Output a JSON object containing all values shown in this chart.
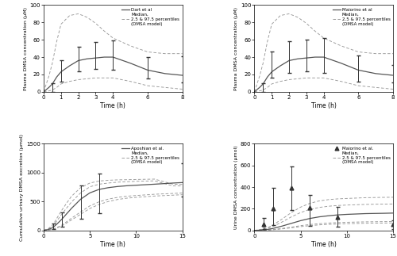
{
  "panel_tl": {
    "legend_label": "Dart et al",
    "legend_lines": [
      "Median,",
      "2.5 & 97.5 percentiles",
      "(DMSA model)"
    ],
    "xlabel": "Time (h)",
    "ylabel": "Plasma DMSA concentration (μM)",
    "xlim": [
      0,
      8
    ],
    "ylim": [
      0,
      100
    ],
    "xticks": [
      0,
      1,
      2,
      3,
      4,
      6,
      8
    ],
    "yticks": [
      0,
      20,
      40,
      60,
      80,
      100
    ],
    "median_x": [
      0,
      0.3,
      0.5,
      0.75,
      1,
      1.5,
      2,
      2.5,
      3,
      3.5,
      4,
      5,
      6,
      7,
      8
    ],
    "median_y": [
      0,
      5,
      9,
      17,
      23,
      30,
      36,
      38,
      39,
      40,
      40,
      33,
      25,
      21,
      19
    ],
    "p97_x": [
      0,
      0.3,
      0.5,
      0.75,
      1,
      1.5,
      2,
      2.5,
      3,
      3.5,
      4,
      5,
      6,
      7,
      8
    ],
    "p97_y": [
      0,
      18,
      33,
      58,
      78,
      88,
      90,
      86,
      79,
      70,
      62,
      53,
      46,
      44,
      44
    ],
    "p25_x": [
      0,
      0.3,
      0.5,
      0.75,
      1,
      1.5,
      2,
      2.5,
      3,
      3.5,
      4,
      5,
      6,
      7,
      8
    ],
    "p25_y": [
      0,
      1,
      2,
      5,
      9,
      12,
      14,
      15,
      16,
      16,
      16,
      12,
      7,
      5,
      3
    ],
    "obs_x": [
      0.5,
      1,
      2,
      3,
      4,
      6,
      8
    ],
    "obs_y": [
      5,
      24,
      37,
      39,
      41,
      25,
      19
    ],
    "obs_err_lo": [
      5,
      12,
      13,
      13,
      16,
      10,
      8
    ],
    "obs_err_hi": [
      5,
      12,
      15,
      18,
      18,
      15,
      22
    ],
    "marker": "none"
  },
  "panel_tr": {
    "legend_label": "Maiorino et al",
    "legend_lines": [
      "Median,",
      "2.5 & 97.5 percentiles",
      "(DMSA model)"
    ],
    "xlabel": "Time (h)",
    "ylabel": "Plasma DMSA concentration (μM)",
    "xlim": [
      0,
      8
    ],
    "ylim": [
      0,
      100
    ],
    "xticks": [
      0,
      1,
      2,
      3,
      4,
      6,
      8
    ],
    "yticks": [
      0,
      20,
      40,
      60,
      80,
      100
    ],
    "median_x": [
      0,
      0.3,
      0.5,
      0.75,
      1,
      1.5,
      2,
      2.5,
      3,
      3.5,
      4,
      5,
      6,
      7,
      8
    ],
    "median_y": [
      0,
      5,
      9,
      17,
      23,
      30,
      36,
      38,
      39,
      40,
      40,
      33,
      25,
      21,
      19
    ],
    "p97_x": [
      0,
      0.3,
      0.5,
      0.75,
      1,
      1.5,
      2,
      2.5,
      3,
      3.5,
      4,
      5,
      6,
      7,
      8
    ],
    "p97_y": [
      0,
      18,
      33,
      58,
      78,
      88,
      90,
      86,
      79,
      70,
      62,
      53,
      46,
      44,
      44
    ],
    "p25_x": [
      0,
      0.3,
      0.5,
      0.75,
      1,
      1.5,
      2,
      2.5,
      3,
      3.5,
      4,
      5,
      6,
      7,
      8
    ],
    "p25_y": [
      0,
      1,
      2,
      5,
      9,
      12,
      14,
      15,
      16,
      16,
      16,
      12,
      7,
      5,
      3
    ],
    "obs_x": [
      0.5,
      1,
      2,
      3,
      4,
      6,
      8
    ],
    "obs_y": [
      5,
      30,
      38,
      40,
      42,
      26,
      21
    ],
    "obs_err_lo": [
      5,
      14,
      16,
      16,
      20,
      14,
      10
    ],
    "obs_err_hi": [
      5,
      16,
      20,
      20,
      20,
      16,
      10
    ],
    "marker": "none"
  },
  "panel_bl": {
    "legend_label": "Aposhian et al.",
    "legend_lines": [
      "Median,",
      "2.5 & 97.5 percentiles",
      "(DMSA model)"
    ],
    "xlabel": "Time (h)",
    "ylabel": "Cumulative urinary DMSA excretion (μmol)",
    "xlim": [
      0,
      15
    ],
    "ylim": [
      0,
      1500
    ],
    "xticks": [
      0,
      5,
      10,
      15
    ],
    "yticks": [
      0,
      500,
      1000,
      1500
    ],
    "median_x": [
      0,
      0.5,
      1,
      1.5,
      2,
      3,
      4,
      5,
      6,
      7,
      8,
      9,
      10,
      12,
      14,
      15
    ],
    "median_y": [
      0,
      15,
      50,
      120,
      200,
      380,
      540,
      650,
      710,
      740,
      760,
      773,
      782,
      800,
      820,
      828
    ],
    "p97_x": [
      0,
      0.5,
      1,
      1.5,
      2,
      3,
      4,
      5,
      6,
      7,
      8,
      9,
      10,
      12,
      14,
      15
    ],
    "p97_y": [
      0,
      30,
      95,
      230,
      360,
      590,
      740,
      820,
      855,
      868,
      875,
      878,
      882,
      888,
      800,
      795
    ],
    "p25_x": [
      0,
      0.5,
      1,
      1.5,
      2,
      3,
      4,
      5,
      6,
      7,
      8,
      9,
      10,
      12,
      14,
      15
    ],
    "p25_y": [
      0,
      6,
      18,
      45,
      80,
      180,
      280,
      380,
      450,
      500,
      535,
      558,
      572,
      595,
      610,
      618
    ],
    "p97b_x": [
      0,
      0.5,
      1,
      1.5,
      2,
      3,
      4,
      5,
      6,
      7,
      8,
      9,
      10,
      12,
      14,
      15
    ],
    "p97b_y": [
      0,
      25,
      75,
      180,
      290,
      490,
      650,
      755,
      800,
      820,
      835,
      843,
      850,
      858,
      770,
      770
    ],
    "p25b_x": [
      0,
      0.5,
      1,
      1.5,
      2,
      3,
      4,
      5,
      6,
      7,
      8,
      9,
      10,
      12,
      14,
      15
    ],
    "p25b_y": [
      0,
      8,
      22,
      55,
      95,
      210,
      320,
      425,
      495,
      542,
      572,
      592,
      604,
      626,
      640,
      647
    ],
    "obs_x": [
      1,
      2,
      4,
      6,
      15
    ],
    "obs_y": [
      60,
      215,
      455,
      690,
      840
    ],
    "obs_err_lo": [
      40,
      150,
      250,
      390,
      260
    ],
    "obs_err_hi": [
      55,
      100,
      320,
      300,
      320
    ],
    "marker": "none"
  },
  "panel_br": {
    "legend_label": "Maiorino et al.",
    "legend_lines": [
      "Median,",
      "2.5 & 97.5 percentiles",
      "(DMSA model)"
    ],
    "xlabel": "Time (h)",
    "ylabel": "Urine DMSA concentration (μmol)",
    "xlim": [
      0,
      15
    ],
    "ylim": [
      0,
      800
    ],
    "xticks": [
      0,
      5,
      10,
      15
    ],
    "yticks": [
      0,
      200,
      400,
      600,
      800
    ],
    "median_x": [
      0,
      0.5,
      1,
      1.5,
      2,
      3,
      4,
      5,
      6,
      7,
      8,
      9,
      10,
      12,
      14,
      15
    ],
    "median_y": [
      0,
      2,
      5,
      10,
      18,
      40,
      65,
      90,
      110,
      125,
      135,
      143,
      148,
      155,
      158,
      160
    ],
    "p97_x": [
      0,
      0.5,
      1,
      1.5,
      2,
      3,
      4,
      5,
      6,
      7,
      8,
      9,
      10,
      12,
      14,
      15
    ],
    "p97_y": [
      0,
      5,
      14,
      28,
      50,
      105,
      165,
      215,
      250,
      272,
      284,
      291,
      295,
      302,
      305,
      306
    ],
    "p25_x": [
      0,
      0.5,
      1,
      1.5,
      2,
      3,
      4,
      5,
      6,
      7,
      8,
      9,
      10,
      12,
      14,
      15
    ],
    "p25_y": [
      0,
      0.5,
      2,
      3,
      6,
      14,
      24,
      35,
      44,
      51,
      56,
      59,
      62,
      66,
      68,
      69
    ],
    "p97b_x": [
      0,
      0.5,
      1,
      1.5,
      2,
      3,
      4,
      5,
      6,
      7,
      8,
      9,
      10,
      12,
      14,
      15
    ],
    "p97b_y": [
      0,
      4,
      10,
      20,
      36,
      78,
      125,
      165,
      193,
      212,
      223,
      230,
      234,
      240,
      243,
      244
    ],
    "p25b_x": [
      0,
      0.5,
      1,
      1.5,
      2,
      3,
      4,
      5,
      6,
      7,
      8,
      9,
      10,
      12,
      14,
      15
    ],
    "p25b_y": [
      0,
      0.7,
      2.5,
      4.5,
      8,
      18,
      30,
      44,
      54,
      62,
      68,
      72,
      75,
      79,
      81,
      82
    ],
    "obs_x": [
      1,
      2,
      4,
      6,
      9,
      15
    ],
    "obs_y": [
      55,
      205,
      395,
      210,
      125,
      55
    ],
    "obs_err_lo": [
      45,
      155,
      210,
      170,
      90,
      45
    ],
    "obs_err_hi": [
      60,
      185,
      195,
      120,
      90,
      40
    ],
    "marker": "triangle"
  },
  "line_color_solid": "#555555",
  "line_color_dashed": "#999999",
  "obs_color": "#333333",
  "bg_color": "#ffffff"
}
